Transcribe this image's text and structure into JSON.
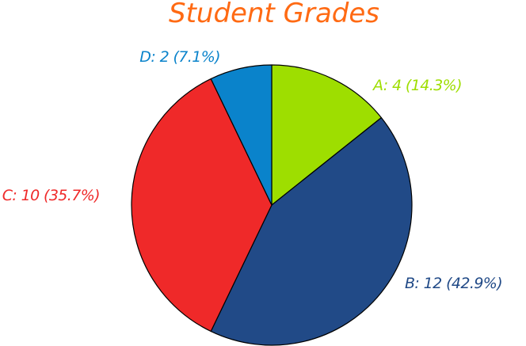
{
  "chart_data": {
    "type": "pie",
    "title": "Student Grades",
    "slices": [
      {
        "label": "A",
        "value": 4,
        "percent": "14.3%",
        "text": "A: 4 (14.3%)",
        "color": "#9ede00"
      },
      {
        "label": "B",
        "value": 12,
        "percent": "42.9%",
        "text": "B: 12 (42.9%)",
        "color": "#214a87"
      },
      {
        "label": "C",
        "value": 10,
        "percent": "35.7%",
        "text": "C: 10 (35.7%)",
        "color": "#ef2929"
      },
      {
        "label": "D",
        "value": 2,
        "percent": "7.1%",
        "text": "D: 2 (7.1%)",
        "color": "#0a83cb"
      }
    ],
    "start_angle": "12 o'clock",
    "direction": "clockwise",
    "title_color": "#ff6a13",
    "slice_edge_color": "#000000"
  }
}
